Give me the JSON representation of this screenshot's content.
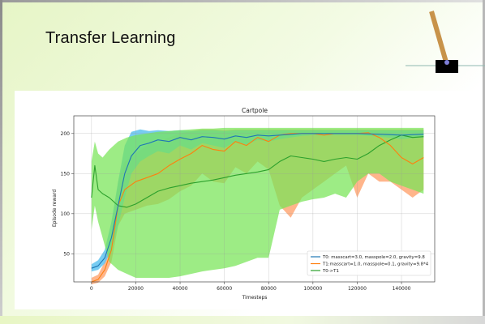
{
  "slide": {
    "title": "Transfer Learning"
  },
  "chart_data": {
    "type": "line",
    "title": "Cartpole",
    "xlabel": "Timesteps",
    "ylabel": "Episode reward",
    "xlim": [
      -8000,
      155000
    ],
    "ylim": [
      15,
      222
    ],
    "x_ticks": [
      0,
      20000,
      40000,
      60000,
      80000,
      100000,
      120000,
      140000
    ],
    "y_ticks": [
      50,
      100,
      150,
      200
    ],
    "grid": true,
    "legend_position": "lower-right",
    "series": [
      {
        "name": "T0: masscart=3.0, masspole=2.0, gravity=9.8",
        "color": "#1f77b4",
        "band_color": "#5fc3f0",
        "x": [
          0,
          3000,
          6000,
          9000,
          12000,
          15000,
          18000,
          22000,
          26000,
          30000,
          35000,
          40000,
          45000,
          50000,
          55000,
          60000,
          65000,
          70000,
          75000,
          80000,
          85000,
          90000,
          95000,
          100000,
          110000,
          120000,
          130000,
          140000,
          150000
        ],
        "mean": [
          32,
          35,
          45,
          70,
          110,
          150,
          172,
          185,
          188,
          192,
          190,
          195,
          192,
          196,
          195,
          193,
          197,
          195,
          198,
          197,
          198,
          199,
          200,
          200,
          200,
          200,
          199,
          198,
          199
        ],
        "low": [
          28,
          30,
          38,
          55,
          85,
          120,
          150,
          165,
          172,
          178,
          175,
          185,
          180,
          188,
          185,
          182,
          190,
          186,
          192,
          190,
          193,
          195,
          197,
          198,
          198,
          198,
          196,
          193,
          195
        ],
        "high": [
          37,
          42,
          55,
          90,
          140,
          185,
          202,
          205,
          203,
          204,
          203,
          204,
          203,
          204,
          204,
          203,
          204,
          204,
          204,
          204,
          204,
          204,
          204,
          204,
          204,
          204,
          204,
          204,
          204
        ]
      },
      {
        "name": "T1:masscart=1.0, masspole=0.1, gravity=9.8*4",
        "color": "#ff7f0e",
        "band_color": "#ffa36e",
        "x": [
          0,
          3000,
          6000,
          9000,
          12000,
          15000,
          20000,
          25000,
          30000,
          35000,
          40000,
          45000,
          50000,
          55000,
          60000,
          65000,
          70000,
          75000,
          80000,
          85000,
          90000,
          95000,
          100000,
          105000,
          110000,
          115000,
          120000,
          125000,
          130000,
          135000,
          140000,
          145000,
          150000
        ],
        "mean": [
          15,
          18,
          30,
          55,
          110,
          130,
          140,
          145,
          150,
          160,
          168,
          175,
          185,
          180,
          178,
          190,
          185,
          195,
          190,
          198,
          200,
          200,
          200,
          198,
          200,
          200,
          200,
          201,
          195,
          185,
          170,
          162,
          170
        ],
        "low": [
          12,
          14,
          22,
          40,
          85,
          100,
          105,
          110,
          112,
          118,
          128,
          135,
          150,
          140,
          138,
          158,
          150,
          165,
          155,
          110,
          95,
          120,
          130,
          140,
          150,
          160,
          120,
          150,
          140,
          140,
          130,
          120,
          130
        ],
        "high": [
          20,
          24,
          40,
          75,
          140,
          165,
          175,
          185,
          190,
          195,
          200,
          203,
          205,
          205,
          204,
          205,
          205,
          205,
          205,
          205,
          205,
          205,
          205,
          205,
          205,
          205,
          205,
          205,
          205,
          205,
          205,
          205,
          205
        ]
      },
      {
        "name": "T0->T1",
        "color": "#2ca02c",
        "band_color": "#77e556",
        "x": [
          0,
          1500,
          3000,
          5000,
          8000,
          12000,
          16000,
          20000,
          25000,
          30000,
          35000,
          40000,
          45000,
          50000,
          55000,
          60000,
          65000,
          70000,
          75000,
          80000,
          85000,
          90000,
          95000,
          100000,
          105000,
          110000,
          115000,
          120000,
          125000,
          130000,
          135000,
          140000,
          145000,
          150000
        ],
        "mean": [
          120,
          160,
          130,
          125,
          120,
          110,
          108,
          112,
          120,
          128,
          132,
          135,
          138,
          140,
          142,
          145,
          148,
          150,
          152,
          155,
          165,
          172,
          170,
          168,
          165,
          168,
          170,
          168,
          175,
          185,
          192,
          198,
          195,
          196
        ],
        "low": [
          80,
          110,
          90,
          70,
          40,
          30,
          25,
          20,
          20,
          20,
          20,
          22,
          25,
          28,
          30,
          32,
          35,
          40,
          45,
          45,
          105,
          110,
          115,
          118,
          120,
          125,
          120,
          140,
          150,
          150,
          140,
          135,
          130,
          125
        ],
        "high": [
          165,
          190,
          175,
          170,
          180,
          190,
          195,
          198,
          200,
          202,
          203,
          204,
          205,
          206,
          206,
          207,
          207,
          207,
          207,
          207,
          207,
          207,
          207,
          207,
          207,
          207,
          207,
          207,
          207,
          207,
          207,
          207,
          207,
          207
        ]
      }
    ]
  },
  "colors": {
    "pole": "#c8934a",
    "cart": "#000000",
    "axle": "#7f7fd8",
    "track": "#8fb8b0"
  }
}
